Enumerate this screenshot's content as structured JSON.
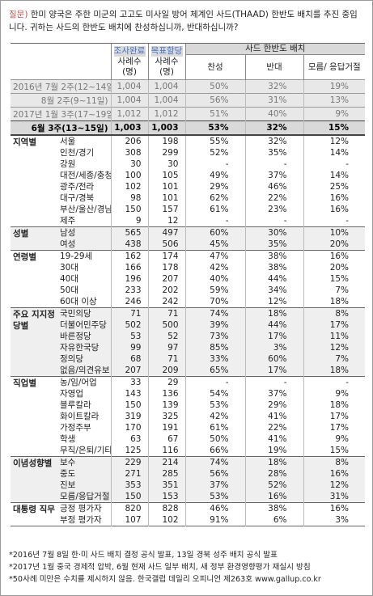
{
  "question": {
    "prefix": "질문)",
    "text": "한미 양국은 주한 미군의 고고도 미사일 방어 체계인 사드(THAAD) 한반도 배치를 추진 중입니다. 귀하는 사드의 한반도 배치에 찬성하십니까, 반대하십니까?"
  },
  "header": {
    "completed": [
      "조사완료",
      "사례수",
      "(명)"
    ],
    "target": [
      "목표할당",
      "사례수",
      "(명)"
    ],
    "group": "사드 한반도 배치",
    "cols": [
      "찬성",
      "반대",
      "모름/ 응답거절"
    ]
  },
  "trend": [
    [
      "2016년 7월 2주(12~14일)",
      "1,004",
      "1,004",
      "50%",
      "32%",
      "19%"
    ],
    [
      "8월 2주(9~11일)",
      "1,004",
      "1,004",
      "56%",
      "31%",
      "13%"
    ],
    [
      "2017년 1월 3주(17~19일)",
      "1,012",
      "1,012",
      "51%",
      "40%",
      "9%"
    ],
    [
      "6월 3주(13~15일)",
      "1,003",
      "1,003",
      "53%",
      "32%",
      "15%"
    ]
  ],
  "groups": [
    {
      "label": "지역별",
      "rows": [
        [
          "서울",
          "206",
          "198",
          "55%",
          "32%",
          "12%"
        ],
        [
          "인천/경기",
          "308",
          "299",
          "52%",
          "35%",
          "14%"
        ],
        [
          "강원",
          "30",
          "30",
          "-",
          "-",
          "-"
        ],
        [
          "대전/세종/충청",
          "100",
          "105",
          "49%",
          "37%",
          "14%"
        ],
        [
          "광주/전라",
          "102",
          "101",
          "29%",
          "46%",
          "25%"
        ],
        [
          "대구/경북",
          "98",
          "101",
          "62%",
          "22%",
          "16%"
        ],
        [
          "부산/울산/경남",
          "150",
          "157",
          "61%",
          "23%",
          "16%"
        ],
        [
          "제주",
          "9",
          "12",
          "-",
          "-",
          "-"
        ]
      ]
    },
    {
      "label": "성별",
      "rows": [
        [
          "남성",
          "565",
          "497",
          "60%",
          "30%",
          "10%"
        ],
        [
          "여성",
          "438",
          "506",
          "45%",
          "35%",
          "20%"
        ]
      ]
    },
    {
      "label": "연령별",
      "rows": [
        [
          "19-29세",
          "162",
          "174",
          "47%",
          "38%",
          "16%"
        ],
        [
          "30대",
          "166",
          "178",
          "42%",
          "38%",
          "20%"
        ],
        [
          "40대",
          "196",
          "207",
          "40%",
          "44%",
          "15%"
        ],
        [
          "50대",
          "233",
          "202",
          "59%",
          "34%",
          "7%"
        ],
        [
          "60대 이상",
          "246",
          "242",
          "70%",
          "12%",
          "18%"
        ]
      ]
    },
    {
      "label": "주요 지지정당별",
      "rows": [
        [
          "국민의당",
          "71",
          "71",
          "74%",
          "18%",
          "8%"
        ],
        [
          "더불어민주당",
          "502",
          "500",
          "39%",
          "44%",
          "17%"
        ],
        [
          "바른정당",
          "53",
          "52",
          "73%",
          "17%",
          "11%"
        ],
        [
          "자유한국당",
          "99",
          "97",
          "85%",
          "3%",
          "12%"
        ],
        [
          "정의당",
          "68",
          "71",
          "33%",
          "60%",
          "7%"
        ],
        [
          "없음/의견유보",
          "207",
          "209",
          "65%",
          "17%",
          "18%"
        ]
      ]
    },
    {
      "label": "직업별",
      "rows": [
        [
          "농/임/어업",
          "33",
          "29",
          "-",
          "-",
          "-"
        ],
        [
          "자영업",
          "143",
          "136",
          "54%",
          "37%",
          "9%"
        ],
        [
          "블루칼라",
          "150",
          "139",
          "53%",
          "29%",
          "18%"
        ],
        [
          "화이트칼라",
          "319",
          "325",
          "42%",
          "41%",
          "17%"
        ],
        [
          "가정주부",
          "170",
          "191",
          "61%",
          "22%",
          "17%"
        ],
        [
          "학생",
          "63",
          "67",
          "50%",
          "41%",
          "9%"
        ],
        [
          "무직/은퇴/기타",
          "125",
          "116",
          "66%",
          "19%",
          "15%"
        ]
      ]
    },
    {
      "label": "이념성향별",
      "rows": [
        [
          "보수",
          "229",
          "214",
          "74%",
          "18%",
          "8%"
        ],
        [
          "중도",
          "271",
          "285",
          "56%",
          "28%",
          "16%"
        ],
        [
          "진보",
          "353",
          "351",
          "37%",
          "52%",
          "12%"
        ],
        [
          "모름/응답거절",
          "150",
          "153",
          "53%",
          "16%",
          "31%"
        ]
      ]
    },
    {
      "label": "대통령 직무",
      "rows": [
        [
          "긍정 평가자",
          "820",
          "828",
          "46%",
          "38%",
          "16%"
        ],
        [
          "부정 평가자",
          "107",
          "102",
          "91%",
          "6%",
          "3%"
        ]
      ]
    }
  ],
  "footnotes": [
    "*2016년 7월 8일 한·미 사드 배치 결정 공식 발표, 13일 경북 성주 배치 공식 발표",
    "*2017년 1월 중국 경제적 압박, 6월 현재 사드 일부 배치, 새 정부 환경영향평가 재실시 방침",
    "*50사례 미만은 수치를 제시하지 않음. 한국갤럽 데일리 오피니언 제263호 www.gallup.co.kr"
  ]
}
